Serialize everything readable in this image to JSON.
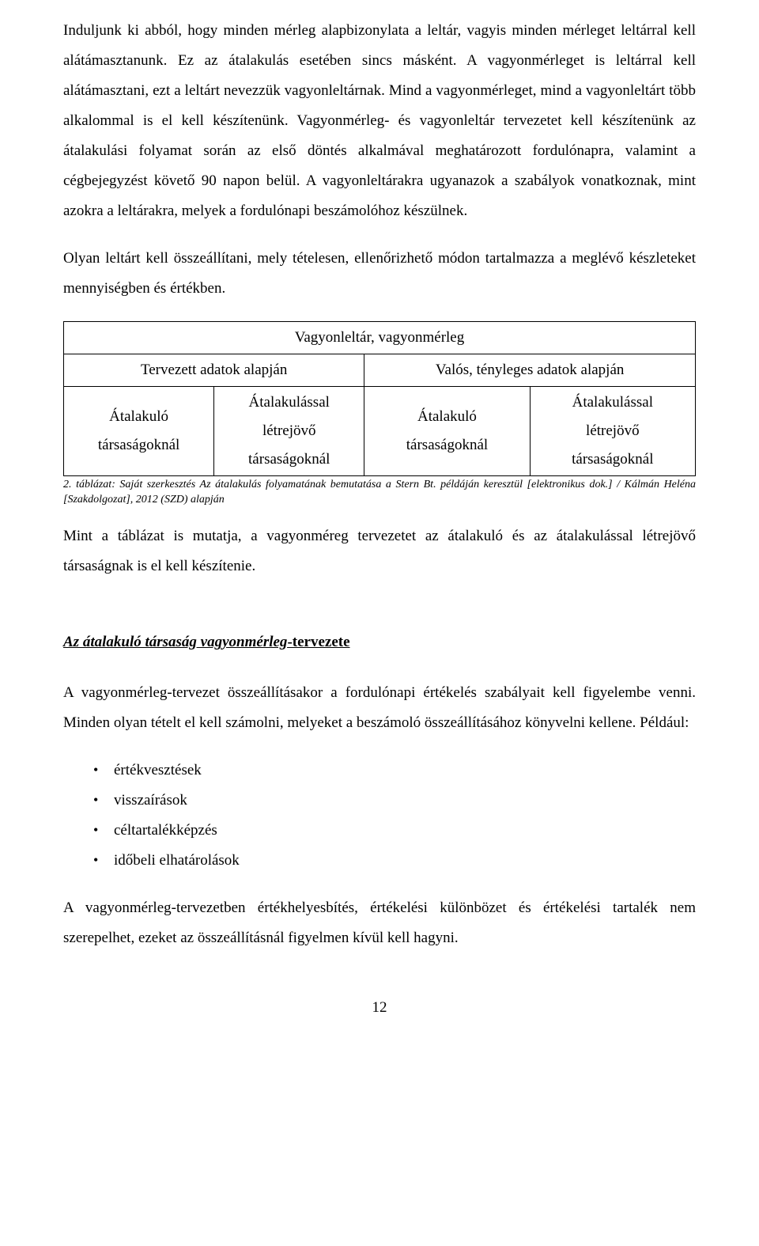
{
  "para1": "Induljunk ki abból, hogy minden mérleg alapbizonylata a leltár, vagyis minden mérleget leltárral kell alátámasztanunk. Ez az átalakulás esetében sincs másként. A vagyonmérleget is leltárral kell alátámasztani, ezt a leltárt nevezzük vagyonleltárnak. Mind a vagyonmérleget, mind a vagyonleltárt több alkalommal is el kell készítenünk. Vagyonmérleg- és vagyonleltár tervezetet kell készítenünk az átalakulási folyamat során az első döntés alkalmával meghatározott fordulónapra, valamint a cégbejegyzést követő 90 napon belül. A vagyonleltárakra ugyanazok a szabályok vonatkoznak, mint azokra a leltárakra, melyek a fordulónapi beszámolóhoz készülnek.",
  "para2": "Olyan leltárt kell összeállítani, mely tételesen, ellenőrizhető módon tartalmazza a meglévő készleteket mennyiségben és értékben.",
  "table": {
    "title": "Vagyonleltár, vagyonmérleg",
    "header_left": "Tervezett adatok alapján",
    "header_right": "Valós, tényleges adatok alapján",
    "c1_l1": "Átalakuló",
    "c1_l2": "társaságoknál",
    "c2_l1": "Átalakulással",
    "c2_l2": "létrejövő",
    "c2_l3": "társaságoknál",
    "c3_l1": "Átalakuló",
    "c3_l2": "társaságoknál",
    "c4_l1": "Átalakulással",
    "c4_l2": "létrejövő",
    "c4_l3": "társaságoknál"
  },
  "caption": "2. táblázat: Saját szerkesztés Az átalakulás folyamatának bemutatása a Stern Bt. példáján keresztül [elektronikus dok.] / Kálmán Heléna [Szakdolgozat], 2012 (SZD) alapján",
  "para3": "Mint a táblázat is mutatja, a vagyonméreg tervezetet az átalakuló és az átalakulással létrejövő társaságnak is el kell készítenie.",
  "subheading_italic": "Az átalakuló társaság vagyonmérleg",
  "subheading_plain": "-tervezete",
  "para4": "A vagyonmérleg-tervezet összeállításakor a fordulónapi értékelés szabályait kell figyelembe venni. Minden olyan tételt el kell számolni, melyeket a beszámoló összeállításához könyvelni kellene. Például:",
  "bullets": {
    "b1": "értékvesztések",
    "b2": "visszaírások",
    "b3": "céltartalékképzés",
    "b4": "időbeli elhatárolások"
  },
  "para5": "A vagyonmérleg-tervezetben értékhelyesbítés, értékelési különbözet és értékelési tartalék nem szerepelhet, ezeket az összeállításnál figyelmen kívül kell hagyni.",
  "page_number": "12"
}
